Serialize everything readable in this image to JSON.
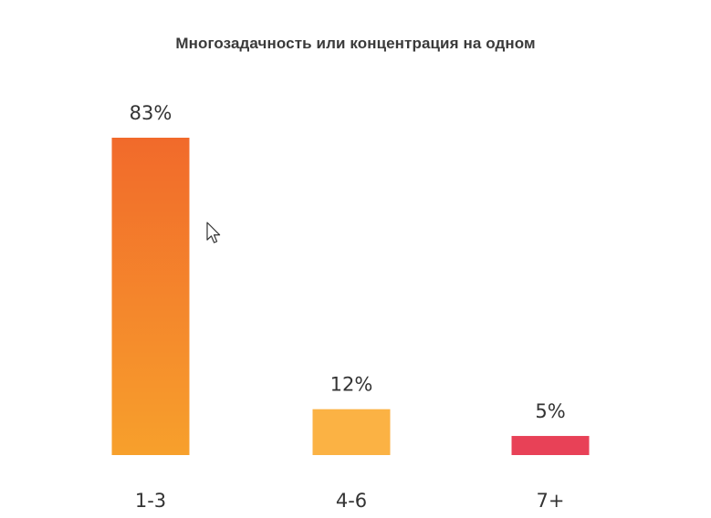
{
  "chart_data": {
    "type": "bar",
    "title": "Многозадачность или концентрация на одном",
    "categories": [
      "1-3",
      "4-6",
      "7+"
    ],
    "values": [
      83,
      12,
      5
    ],
    "value_labels": [
      "83%",
      "12%",
      "5%"
    ],
    "colors": [
      "#f16a2b",
      "#fbb244",
      "#e84157"
    ],
    "gradient_bottom": [
      "#f7a02c",
      "#fbb244",
      "#e84157"
    ],
    "xlabel": "",
    "ylabel": "",
    "ylim": [
      0,
      83
    ],
    "grid": false,
    "legend": "none"
  },
  "cursor": {
    "icon": "mouse-pointer-icon"
  }
}
